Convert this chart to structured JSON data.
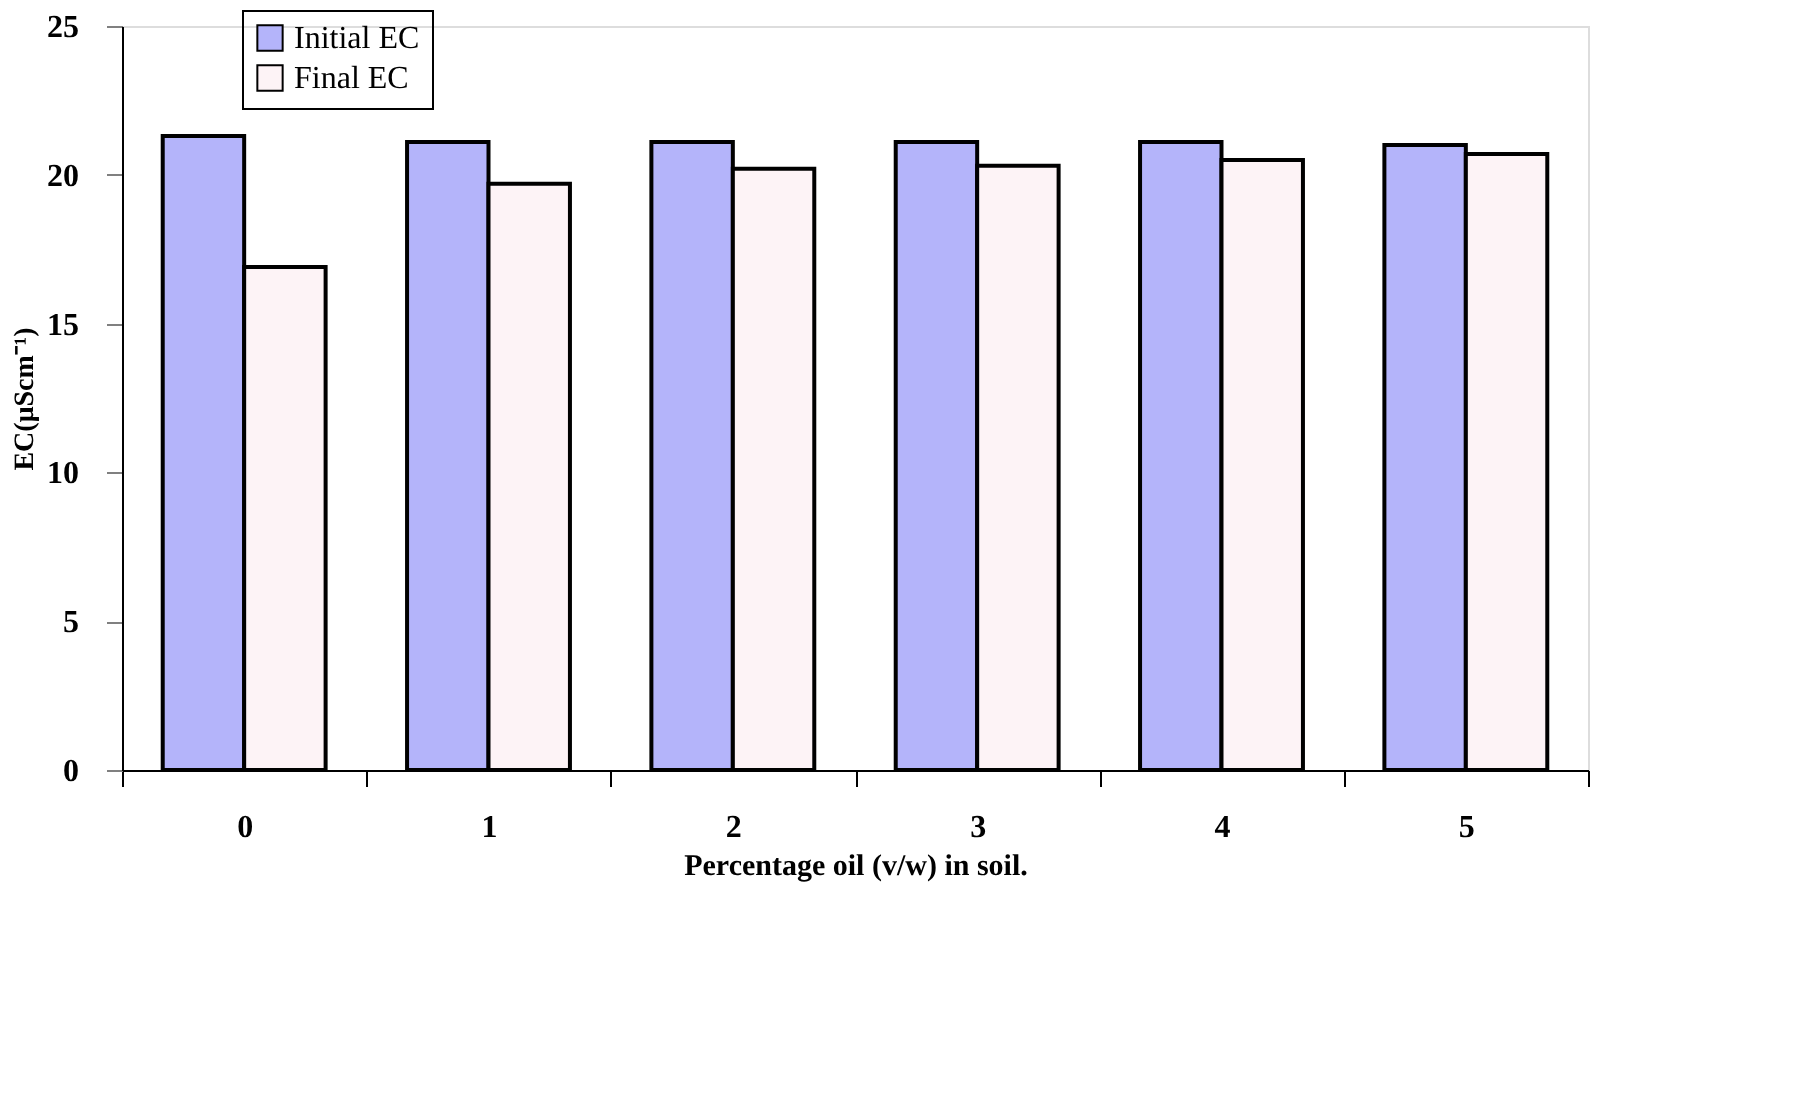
{
  "chart_data": {
    "type": "bar",
    "xlabel": "Percentage oil (v/w) in soil.",
    "ylabel": "EC(μScm⁻¹)",
    "categories": [
      "0",
      "1",
      "2",
      "3",
      "4",
      "5"
    ],
    "series": [
      {
        "name": "Initial EC",
        "color": "#b4b4fa",
        "values": [
          21.3,
          21.1,
          21.1,
          21.1,
          21.1,
          21.0
        ]
      },
      {
        "name": "Final EC",
        "color": "#fdf3f6",
        "values": [
          16.9,
          19.7,
          20.2,
          20.3,
          20.5,
          20.7
        ]
      }
    ],
    "ylim": [
      0,
      25
    ],
    "yticks": [
      0,
      5,
      10,
      15,
      20,
      25
    ],
    "grid": false,
    "legend": "top left"
  }
}
